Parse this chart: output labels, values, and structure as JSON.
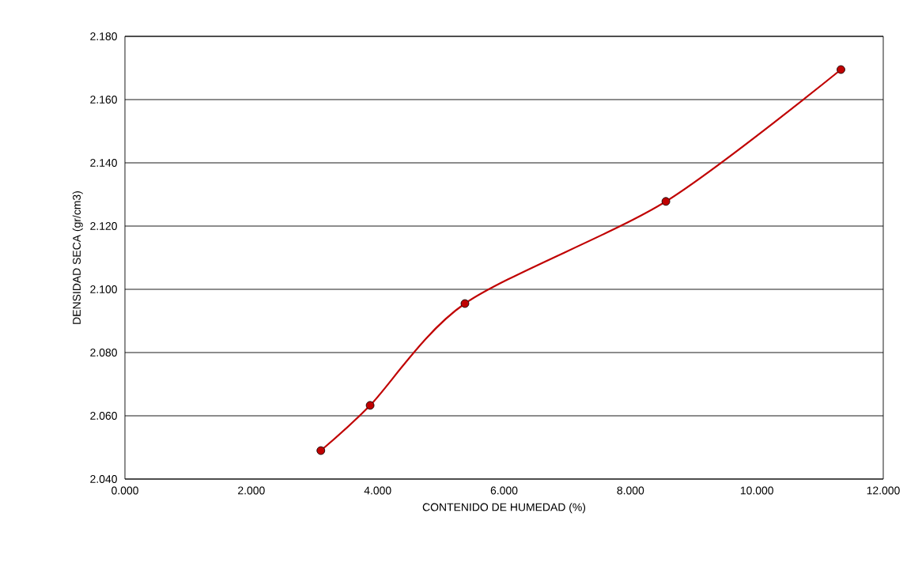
{
  "chart_data": {
    "type": "line",
    "xlabel": "CONTENIDO DE HUMEDAD (%)",
    "ylabel": "DENSIDAD SECA (gr/cm3)",
    "x": [
      3.1,
      3.88,
      5.38,
      8.56,
      11.33
    ],
    "series": [
      {
        "color": "#c00000",
        "values": [
          2.049,
          2.0633,
          2.0955,
          2.1278,
          2.1695
        ]
      }
    ],
    "xlim": [
      0,
      12
    ],
    "ylim": [
      2.04,
      2.18
    ],
    "xticks": [
      {
        "value": 0,
        "label": "0.000"
      },
      {
        "value": 2,
        "label": "2.000"
      },
      {
        "value": 4,
        "label": "4.000"
      },
      {
        "value": 6,
        "label": "6.000"
      },
      {
        "value": 8,
        "label": "8.000"
      },
      {
        "value": 10,
        "label": "10.000"
      },
      {
        "value": 12,
        "label": "12.000"
      }
    ],
    "yticks": [
      {
        "value": 2.04,
        "label": "2.040"
      },
      {
        "value": 2.06,
        "label": "2.060"
      },
      {
        "value": 2.08,
        "label": "2.080"
      },
      {
        "value": 2.1,
        "label": "2.100"
      },
      {
        "value": 2.12,
        "label": "2.120"
      },
      {
        "value": 2.14,
        "label": "2.140"
      },
      {
        "value": 2.16,
        "label": "2.160"
      },
      {
        "value": 2.18,
        "label": "2.180"
      }
    ],
    "grid": "y",
    "marker": "circle",
    "line_style": "solid"
  }
}
